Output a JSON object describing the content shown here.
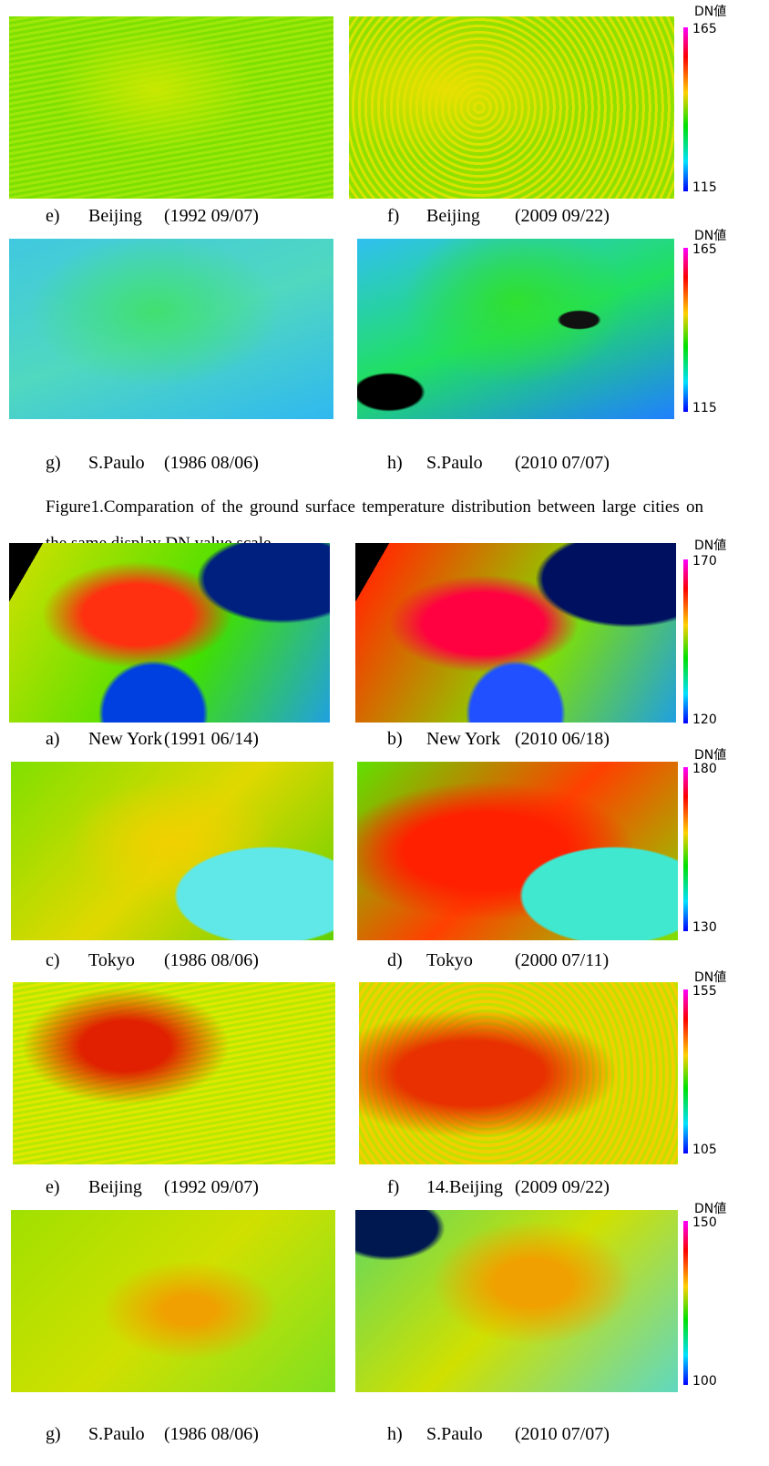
{
  "rows": [
    {
      "panels": [
        {
          "label": "e)",
          "city": "Beijing",
          "date": "(1992 09/07)"
        },
        {
          "label": "f)",
          "city": "Beijing",
          "date": "(2009 09/22)"
        }
      ],
      "scale": {
        "title": "DN値",
        "max": 165,
        "min": 115
      }
    },
    {
      "panels": [
        {
          "label": "g)",
          "city": "S.Paulo",
          "date": "(1986 08/06)"
        },
        {
          "label": "h)",
          "city": "S.Paulo",
          "date": "(2010 07/07)"
        }
      ],
      "scale": {
        "title": "DN値",
        "max": 165,
        "min": 115
      }
    },
    {
      "panels": [
        {
          "label": "a)",
          "city": "New York",
          "date": "(1991 06/14)"
        },
        {
          "label": "b)",
          "city": "New York",
          "date": "(2010 06/18)"
        }
      ],
      "scale": {
        "title": "DN値",
        "max": 170,
        "min": 120
      }
    },
    {
      "panels": [
        {
          "label": "c)",
          "city": "Tokyo",
          "date": "(1986 08/06)"
        },
        {
          "label": "d)",
          "city": "Tokyo",
          "date": "(2000 07/11)"
        }
      ],
      "scale": {
        "title": "DN値",
        "max": 180,
        "min": 130
      }
    },
    {
      "panels": [
        {
          "label": "e)",
          "city": "Beijing",
          "date": "(1992 09/07)"
        },
        {
          "label": "f)",
          "city": "14.Beijing",
          "date": "(2009 09/22)"
        }
      ],
      "scale": {
        "title": "DN値",
        "max": 155,
        "min": 105
      }
    },
    {
      "panels": [
        {
          "label": "g)",
          "city": "S.Paulo",
          "date": "(1986 08/06)"
        },
        {
          "label": "h)",
          "city": "S.Paulo",
          "date": "(2010 07/07)"
        }
      ],
      "scale": {
        "title": "DN値",
        "max": 150,
        "min": 100
      }
    }
  ],
  "caption": "Figure1.Comparation of the ground surface temperature distribution between large cities on the same display DN value scale."
}
